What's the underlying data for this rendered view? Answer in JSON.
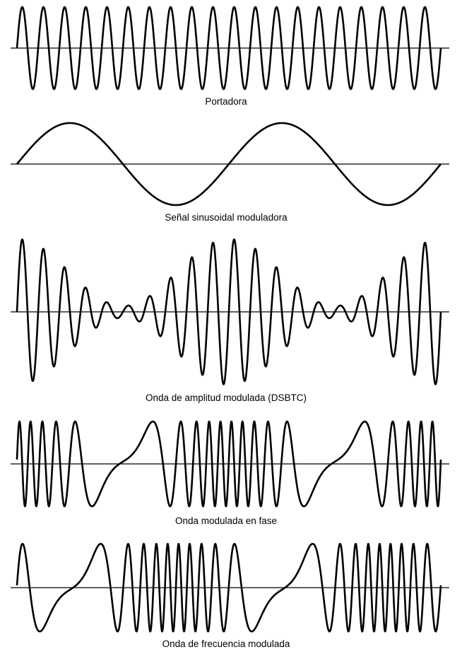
{
  "figure": {
    "panels": [
      {
        "id": "carrier",
        "label": "Portadora",
        "kind": "carrier",
        "carrier_cycles": 20
      },
      {
        "id": "modulating",
        "label": "Señal sinusoidal moduladora",
        "kind": "modulating",
        "modulating_cycles": 2
      },
      {
        "id": "am",
        "label": "Onda de amplitud modulada (DSBTC)",
        "kind": "am",
        "carrier_cycles": 20,
        "modulating_cycles": 2,
        "modulation_index": 0.85
      },
      {
        "id": "pm",
        "label": "Onda modulada en fase",
        "kind": "pm",
        "carrier_cycles": 20,
        "modulating_cycles": 2
      },
      {
        "id": "fm",
        "label": "Onda de frecuencia modulada",
        "kind": "fm",
        "carrier_cycles": 20,
        "modulating_cycles": 2
      }
    ],
    "colors": {
      "line": "#000000",
      "background": "#ffffff"
    }
  }
}
